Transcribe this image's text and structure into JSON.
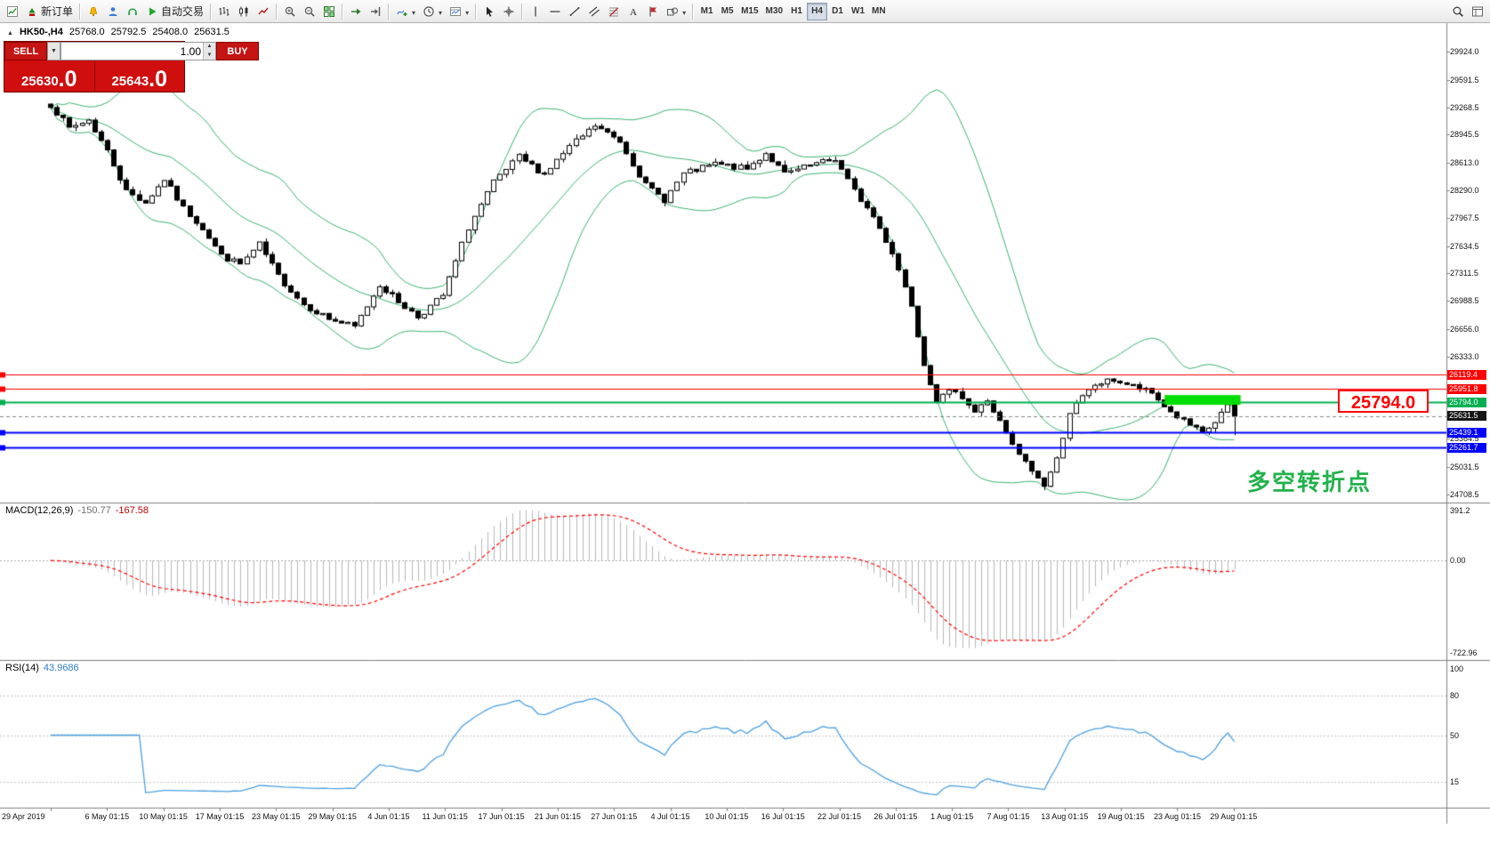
{
  "toolbar": {
    "groups": [
      {
        "items": [
          {
            "name": "new-chart-button",
            "icon": "new-chart"
          },
          {
            "name": "new-order-button",
            "icon": "new-order",
            "label": "新订单"
          }
        ]
      },
      {
        "items": [
          {
            "name": "alerts-button",
            "icon": "bell"
          },
          {
            "name": "community-button",
            "icon": "user"
          },
          {
            "name": "support-button",
            "icon": "headset"
          },
          {
            "name": "autotrade-button",
            "icon": "play",
            "label": "自动交易"
          }
        ]
      },
      {
        "items": [
          {
            "name": "bar-chart-button",
            "icon": "bars"
          },
          {
            "name": "candlestick-chart-button",
            "icon": "candles"
          },
          {
            "name": "line-chart-button",
            "icon": "line"
          }
        ]
      },
      {
        "items": [
          {
            "name": "zoom-in-button",
            "icon": "zoom-in"
          },
          {
            "name": "zoom-out-button",
            "icon": "zoom-out"
          },
          {
            "name": "tile-windows-button",
            "icon": "tile"
          }
        ]
      },
      {
        "items": [
          {
            "name": "auto-scroll-button",
            "icon": "autoscroll"
          },
          {
            "name": "chart-shift-button",
            "icon": "shift"
          }
        ]
      },
      {
        "items": [
          {
            "name": "indicators-button",
            "icon": "indicator",
            "dropdown": true
          },
          {
            "name": "periods-button",
            "icon": "clock",
            "dropdown": true
          },
          {
            "name": "templates-button",
            "icon": "template",
            "dropdown": true
          }
        ]
      },
      {
        "items": [
          {
            "name": "cursor-button",
            "icon": "cursor"
          },
          {
            "name": "crosshair-button",
            "icon": "crosshair"
          }
        ]
      },
      {
        "items": [
          {
            "name": "vertical-line-button",
            "icon": "vline"
          },
          {
            "name": "horizontal-line-button",
            "icon": "hline"
          },
          {
            "name": "trendline-button",
            "icon": "trend"
          },
          {
            "name": "channel-button",
            "icon": "channel"
          },
          {
            "name": "fibonacci-button",
            "icon": "fibo"
          },
          {
            "name": "text-button",
            "icon": "text"
          },
          {
            "name": "label-button",
            "icon": "flag"
          },
          {
            "name": "shapes-button",
            "icon": "shapes",
            "dropdown": true
          }
        ]
      },
      {
        "items": [
          {
            "name": "timeframe-m1-button",
            "label": "M1",
            "kind": "tf"
          },
          {
            "name": "timeframe-m5-button",
            "label": "M5",
            "kind": "tf"
          },
          {
            "name": "timeframe-m15-button",
            "label": "M15",
            "kind": "tf"
          },
          {
            "name": "timeframe-m30-button",
            "label": "M30",
            "kind": "tf"
          },
          {
            "name": "timeframe-h1-button",
            "label": "H1",
            "kind": "tf"
          },
          {
            "name": "timeframe-h4-button",
            "label": "H4",
            "kind": "tf",
            "active": true
          },
          {
            "name": "timeframe-d1-button",
            "label": "D1",
            "kind": "tf"
          },
          {
            "name": "timeframe-w1-button",
            "label": "W1",
            "kind": "tf"
          },
          {
            "name": "timeframe-mn-button",
            "label": "MN",
            "kind": "tf"
          }
        ]
      },
      {
        "spacer": true
      },
      {
        "items": [
          {
            "name": "search-button",
            "icon": "search"
          },
          {
            "name": "data-window-button",
            "icon": "panel"
          }
        ]
      }
    ]
  },
  "chart": {
    "title": "HK50-,H4",
    "ohlc": {
      "open": "25768.0",
      "high": "25792.5",
      "low": "25408.0",
      "close": "25631.5"
    },
    "trade_panel": {
      "sell_label": "SELL",
      "buy_label": "BUY",
      "volume": "1.00",
      "sell_price_main": "25630",
      "sell_price_pips": ".0",
      "buy_price_main": "25643",
      "buy_price_pips": ".0"
    },
    "callout_text": "25794.0",
    "annotation_text": "多空转折点"
  },
  "chart_data": {
    "type": "candlestick",
    "symbol": "HK50",
    "timeframe": "H4",
    "price_axis_ticks": [
      29924.0,
      29591.5,
      29268.5,
      28945.5,
      28613.0,
      28290.0,
      27967.5,
      27634.5,
      27311.5,
      26988.5,
      26656.0,
      26333.0,
      26010.0,
      25687.0,
      25364.5,
      25031.5,
      24708.5
    ],
    "date_axis": [
      "29 Apr 2019",
      "6 May 01:15",
      "10 May 01:15",
      "17 May 01:15",
      "23 May 01:15",
      "29 May 01:15",
      "4 Jun 01:15",
      "11 Jun 01:15",
      "17 Jun 01:15",
      "21 Jun 01:15",
      "27 Jun 01:15",
      "4 Jul 01:15",
      "10 Jul 01:15",
      "16 Jul 01:15",
      "22 Jul 01:15",
      "26 Jul 01:15",
      "1 Aug 01:15",
      "7 Aug 01:15",
      "13 Aug 01:15",
      "19 Aug 01:15",
      "23 Aug 01:15",
      "29 Aug 01:15"
    ],
    "candles": {
      "count": 188,
      "noise_amplitude": 70,
      "wick_amplitude": 60,
      "close_waypoints": [
        [
          0,
          29300
        ],
        [
          3,
          29020
        ],
        [
          6,
          29120
        ],
        [
          9,
          28750
        ],
        [
          12,
          28280
        ],
        [
          15,
          28150
        ],
        [
          18,
          28420
        ],
        [
          21,
          28080
        ],
        [
          24,
          27850
        ],
        [
          27,
          27520
        ],
        [
          30,
          27420
        ],
        [
          33,
          27650
        ],
        [
          36,
          27280
        ],
        [
          40,
          26950
        ],
        [
          44,
          26780
        ],
        [
          48,
          26680
        ],
        [
          52,
          27180
        ],
        [
          55,
          26980
        ],
        [
          58,
          26800
        ],
        [
          62,
          27050
        ],
        [
          66,
          27850
        ],
        [
          70,
          28380
        ],
        [
          74,
          28680
        ],
        [
          78,
          28480
        ],
        [
          82,
          28800
        ],
        [
          86,
          29050
        ],
        [
          90,
          28870
        ],
        [
          94,
          28350
        ],
        [
          97,
          28180
        ],
        [
          100,
          28480
        ],
        [
          105,
          28600
        ],
        [
          110,
          28540
        ],
        [
          113,
          28730
        ],
        [
          116,
          28480
        ],
        [
          120,
          28580
        ],
        [
          124,
          28660
        ],
        [
          127,
          28280
        ],
        [
          130,
          27980
        ],
        [
          133,
          27560
        ],
        [
          136,
          26950
        ],
        [
          138,
          26250
        ],
        [
          140,
          25820
        ],
        [
          143,
          25950
        ],
        [
          146,
          25680
        ],
        [
          148,
          25820
        ],
        [
          150,
          25560
        ],
        [
          152,
          25280
        ],
        [
          154,
          25080
        ],
        [
          156,
          24900
        ],
        [
          157,
          24820
        ],
        [
          159,
          25120
        ],
        [
          161,
          25680
        ],
        [
          163,
          25850
        ],
        [
          165,
          26000
        ],
        [
          168,
          26060
        ],
        [
          171,
          25980
        ],
        [
          174,
          25900
        ],
        [
          177,
          25680
        ],
        [
          180,
          25520
        ],
        [
          182,
          25420
        ],
        [
          184,
          25560
        ],
        [
          186,
          25768
        ],
        [
          187,
          25631.5
        ]
      ],
      "last_candle": {
        "open": 25768.0,
        "high": 25792.5,
        "low": 25408.0,
        "close": 25631.5
      },
      "lowest_low": {
        "index": 157,
        "price": 24760
      }
    },
    "overlays": {
      "bollinger": {
        "period": 20,
        "deviation": 2,
        "color": "#3cb371"
      }
    },
    "hlines": [
      {
        "price": 26119.4,
        "label": "26119.4",
        "color": "#ff0000",
        "width": 1
      },
      {
        "price": 25951.8,
        "label": "25951.8",
        "color": "#ff0000",
        "width": 1
      },
      {
        "price": 25794.0,
        "label": "25794.0",
        "color": "#00b050",
        "width": 2
      },
      {
        "price": 25439.1,
        "label": "25439.1",
        "color": "#0000ff",
        "width": 2
      },
      {
        "price": 25261.7,
        "label": "25261.7",
        "color": "#0000ff",
        "width": 2
      }
    ],
    "current_price": {
      "value": 25631.5,
      "label": "25631.5",
      "label_bg": "#151515"
    },
    "highlight_rect": {
      "start_index": 176,
      "end_index": 188,
      "price_top": 25880,
      "price_bottom": 25765,
      "color": "#00dd00"
    },
    "macd": {
      "label": "MACD(12,26,9)",
      "value1": "-150.77",
      "value2": "-167.58",
      "fast": 12,
      "slow": 26,
      "signal": 9,
      "axis_ticks": [
        "391.2",
        "0.00",
        "-722.96"
      ],
      "hist_color": "#b8b8b8",
      "signal_color": "#ff0000"
    },
    "rsi": {
      "label": "RSI(14)",
      "value": "43.9686",
      "period": 14,
      "axis_ticks": [
        "100",
        "80",
        "50",
        "15"
      ],
      "levels": [
        80,
        50,
        15
      ],
      "color": "#4da0e0"
    },
    "colors": {
      "bull": "#ffffff",
      "bear": "#000000",
      "outline": "#000000",
      "axis_text": "#111111"
    }
  }
}
